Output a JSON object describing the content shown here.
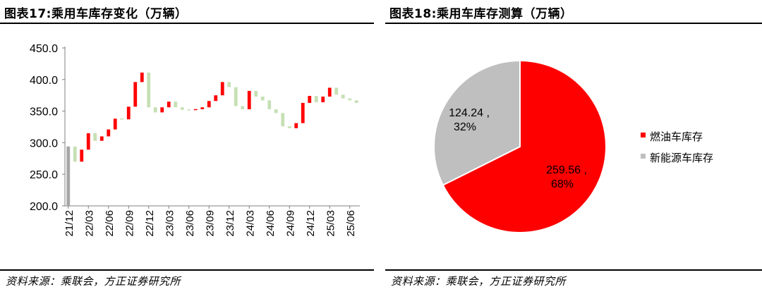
{
  "left": {
    "title": "图表17:乘用车库存变化（万辆）",
    "source": "资料来源：乘联会，方正证券研究所"
  },
  "right": {
    "title": "图表18:乘用车库存测算（万辆）",
    "source": "资料来源：乘联会，方正证券研究所"
  },
  "colors": {
    "increase": "#ff0000",
    "decrease": "#c6e0b4",
    "total": "#a6a6a6",
    "axis": "#808080"
  },
  "chart_data": [
    {
      "type": "bar",
      "subtype": "waterfall",
      "title": "乘用车库存变化（万辆）",
      "ylim": [
        200,
        450
      ],
      "yticks": [
        "200.0",
        "250.0",
        "300.0",
        "350.0",
        "400.0",
        "450.0"
      ],
      "xtick_labels": [
        "21/12",
        "22/03",
        "22/06",
        "22/09",
        "22/12",
        "23/03",
        "23/06",
        "23/09",
        "23/12",
        "24/03",
        "24/06",
        "24/09",
        "24/12",
        "25/03",
        "25/06"
      ],
      "categories": [
        "21/12",
        "22/01",
        "22/02",
        "22/03",
        "22/04",
        "22/05",
        "22/06",
        "22/07",
        "22/08",
        "22/09",
        "22/10",
        "22/11",
        "22/12",
        "23/01",
        "23/02",
        "23/03",
        "23/04",
        "23/05",
        "23/06",
        "23/07",
        "23/08",
        "23/09",
        "23/10",
        "23/11",
        "23/12",
        "24/01",
        "24/02",
        "24/03",
        "24/04",
        "24/05",
        "24/06",
        "24/07",
        "24/08",
        "24/09",
        "24/10",
        "24/11",
        "24/12",
        "25/01",
        "25/02",
        "25/03",
        "25/04",
        "25/05",
        "25/06",
        "25/07"
      ],
      "start_total": 294,
      "changes": [
        0,
        -24,
        19,
        26,
        -12,
        7,
        11,
        17,
        -1,
        20,
        39,
        15,
        -55,
        -8,
        8,
        9,
        -9,
        -4,
        0,
        1,
        3,
        10,
        9,
        21,
        -8,
        -30,
        -5,
        29,
        -9,
        -6,
        -14,
        -6,
        -21,
        -3,
        8,
        32,
        11,
        -10,
        9,
        14,
        -11,
        -6,
        -3,
        -4
      ],
      "legend": []
    },
    {
      "type": "pie",
      "title": "乘用车库存测算（万辆）",
      "slices": [
        {
          "name": "燃油车库存",
          "value": 259.56,
          "percent": "68%",
          "value_label": "259.56",
          "color": "#ff0000"
        },
        {
          "name": "新能源车库存",
          "value": 124.24,
          "percent": "32%",
          "value_label": "124.24",
          "color": "#bfbfbf"
        }
      ],
      "legend_position": "right"
    }
  ]
}
